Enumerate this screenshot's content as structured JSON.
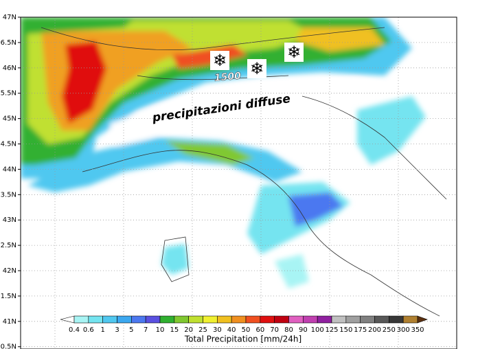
{
  "map": {
    "lat_labels": [
      "47N",
      "6.5N",
      "46N",
      "5.5N",
      "45N",
      "4.5N",
      "44N",
      "3.5N",
      "43N",
      "2.5N",
      "42N",
      "1.5N",
      "41N",
      "0.5N"
    ],
    "annotations": [
      "1500",
      "precipitazioni diffuse"
    ]
  },
  "colorbar": {
    "title": "Total Precipitation [mm/24h]",
    "labels": [
      "0.4",
      "0.6",
      "1",
      "3",
      "5",
      "7",
      "10",
      "15",
      "20",
      "25",
      "30",
      "40",
      "50",
      "60",
      "70",
      "80",
      "90",
      "100",
      "125",
      "150",
      "175",
      "200",
      "250",
      "300",
      "350"
    ],
    "under_color": "#ffffff",
    "colors": [
      "#a8f4f4",
      "#74e4f0",
      "#50c8f0",
      "#3ca8f0",
      "#4c78f0",
      "#5a50e0",
      "#30b030",
      "#80c830",
      "#c0e030",
      "#f0f030",
      "#f0c020",
      "#f09020",
      "#f05020",
      "#e01010",
      "#c00010",
      "#e060c0",
      "#c040b0",
      "#9020a0",
      "#c0c0c0",
      "#a0a0a0",
      "#808080",
      "#585858",
      "#383838",
      "#b08030"
    ],
    "over_color": "#5a3010"
  }
}
